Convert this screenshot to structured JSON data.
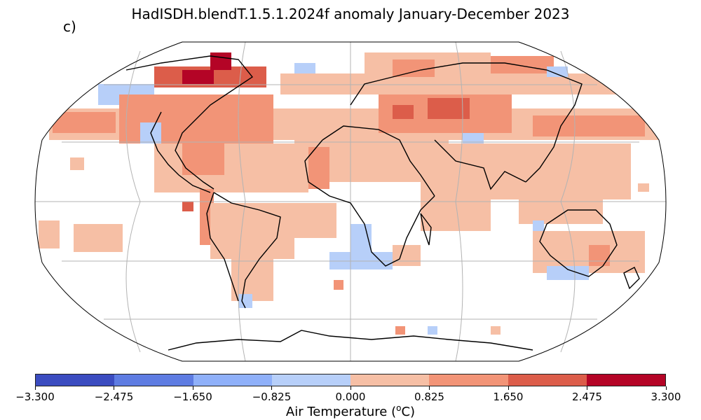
{
  "title": "HadISDH.blendT.1.5.1.2024f anomaly January-December 2023",
  "panel_label": "c)",
  "colorbar": {
    "label_prefix": "Air Temperature (",
    "label_sup": "o",
    "label_suffix": "C)",
    "ticks": [
      "−3.300",
      "−2.475",
      "−1.650",
      "−0.825",
      "0.000",
      "0.825",
      "1.650",
      "2.475",
      "3.300"
    ],
    "colors": [
      "#3b4cc0",
      "#5e7ce2",
      "#8fb0f9",
      "#b7cff9",
      "#f6bfa5",
      "#f29477",
      "#dc5d4a",
      "#b40426"
    ]
  },
  "map": {
    "projection": "Robinson",
    "grid_lines": true
  }
}
